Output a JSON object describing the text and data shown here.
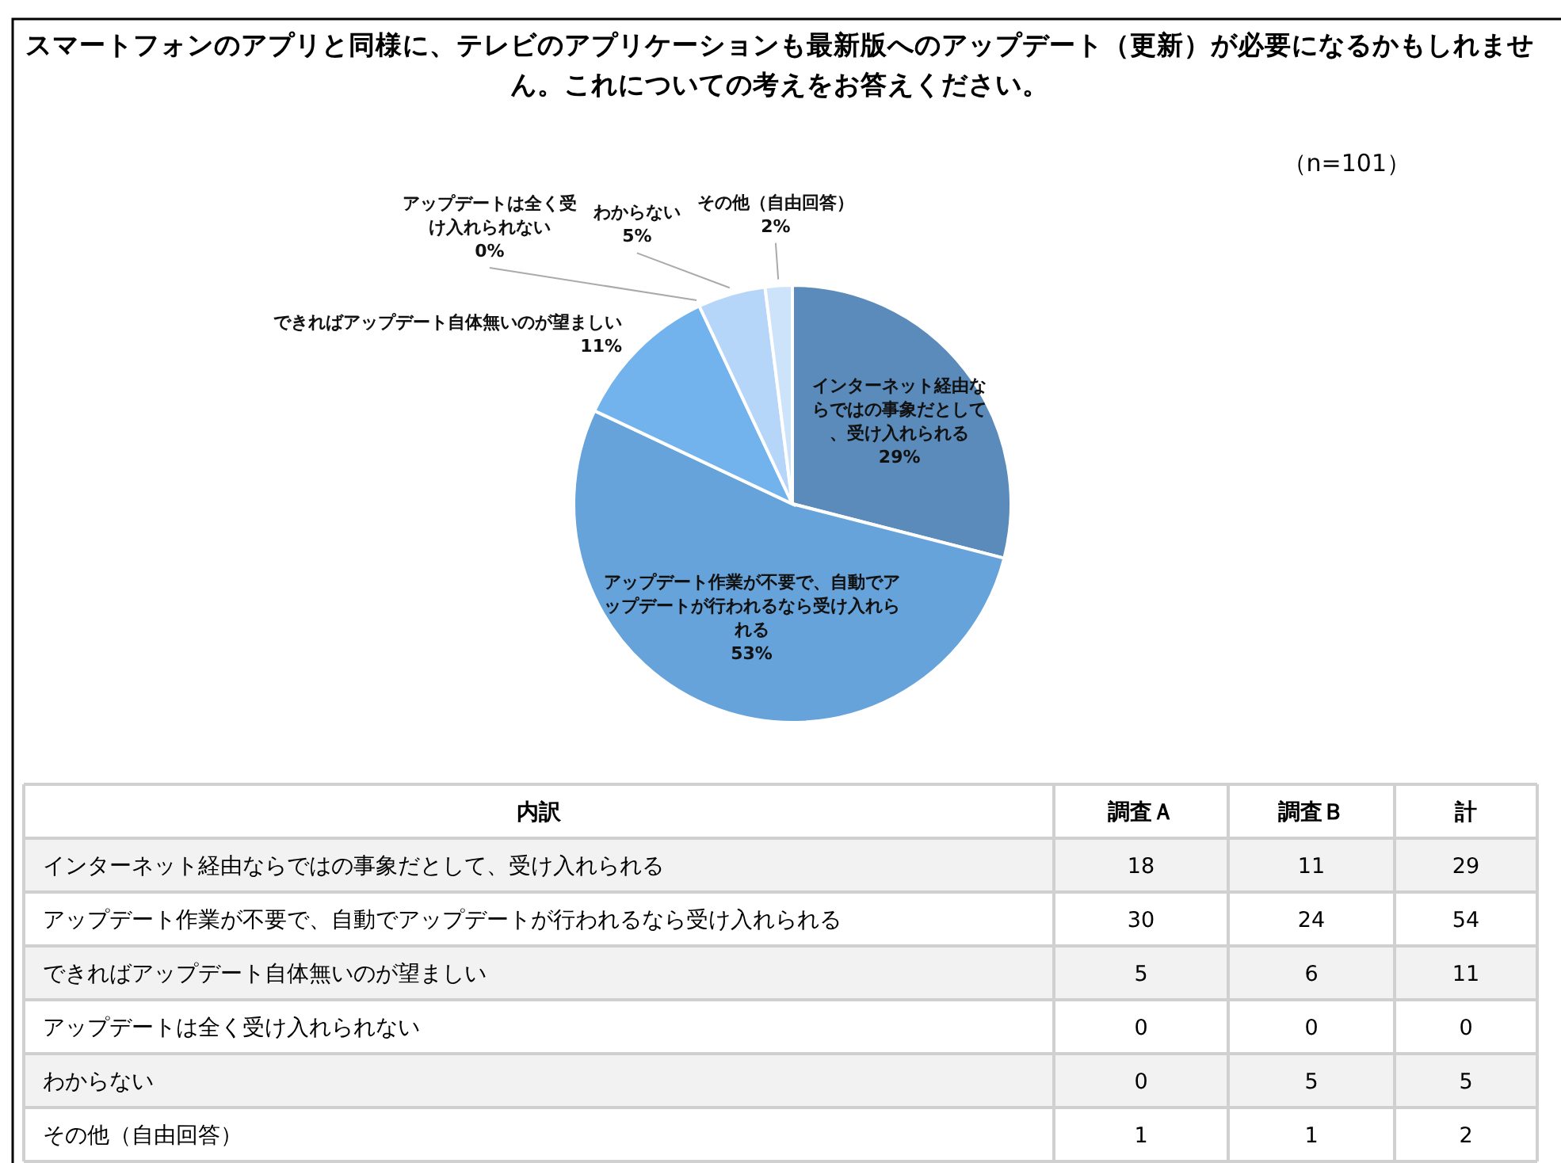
{
  "chart_data": [
    {
      "type": "pie",
      "title": "スマートフォンのアプリと同様に、テレビのアプリケーションも最新版へのアップデート（更新）が必要になるかもしれません。これについての考えをお答えください。",
      "annotations": [
        "（n=101）"
      ],
      "categories": [
        "インターネット経由ならではの事象だとして、受け入れられる",
        "アップデート作業が不要で、自動でアップデートが行われるなら受け入れられる",
        "できればアップデート自体無いのが望ましい",
        "アップデートは全く受け入れられない",
        "わからない",
        "その他（自由回答）"
      ],
      "values": [
        29,
        53,
        11,
        0,
        5,
        2
      ],
      "value_labels": [
        "29%",
        "53%",
        "11%",
        "0%",
        "5%",
        "2%"
      ],
      "colors": [
        "#5a8bbb",
        "#66a3da",
        "#72b3ee",
        "#9cc8f3",
        "#b5d6f8",
        "#cde3fa"
      ]
    },
    {
      "type": "other",
      "title": "内訳",
      "data_labels": true,
      "categories": [
        "インターネット経由ならではの事象だとして、受け入れられる",
        "アップデート作業が不要で、自動でアップデートが行われるなら受け入れられる",
        "できればアップデート自体無いのが望ましい",
        "アップデートは全く受け入れられない",
        "わからない",
        "その他（自由回答）"
      ],
      "series": [
        {
          "name": "調査Ａ",
          "values": [
            18,
            30,
            5,
            0,
            0,
            1
          ]
        },
        {
          "name": "調査Ｂ",
          "values": [
            11,
            24,
            6,
            0,
            5,
            1
          ]
        },
        {
          "name": "計",
          "values": [
            29,
            54,
            11,
            0,
            5,
            2
          ]
        }
      ]
    }
  ]
}
